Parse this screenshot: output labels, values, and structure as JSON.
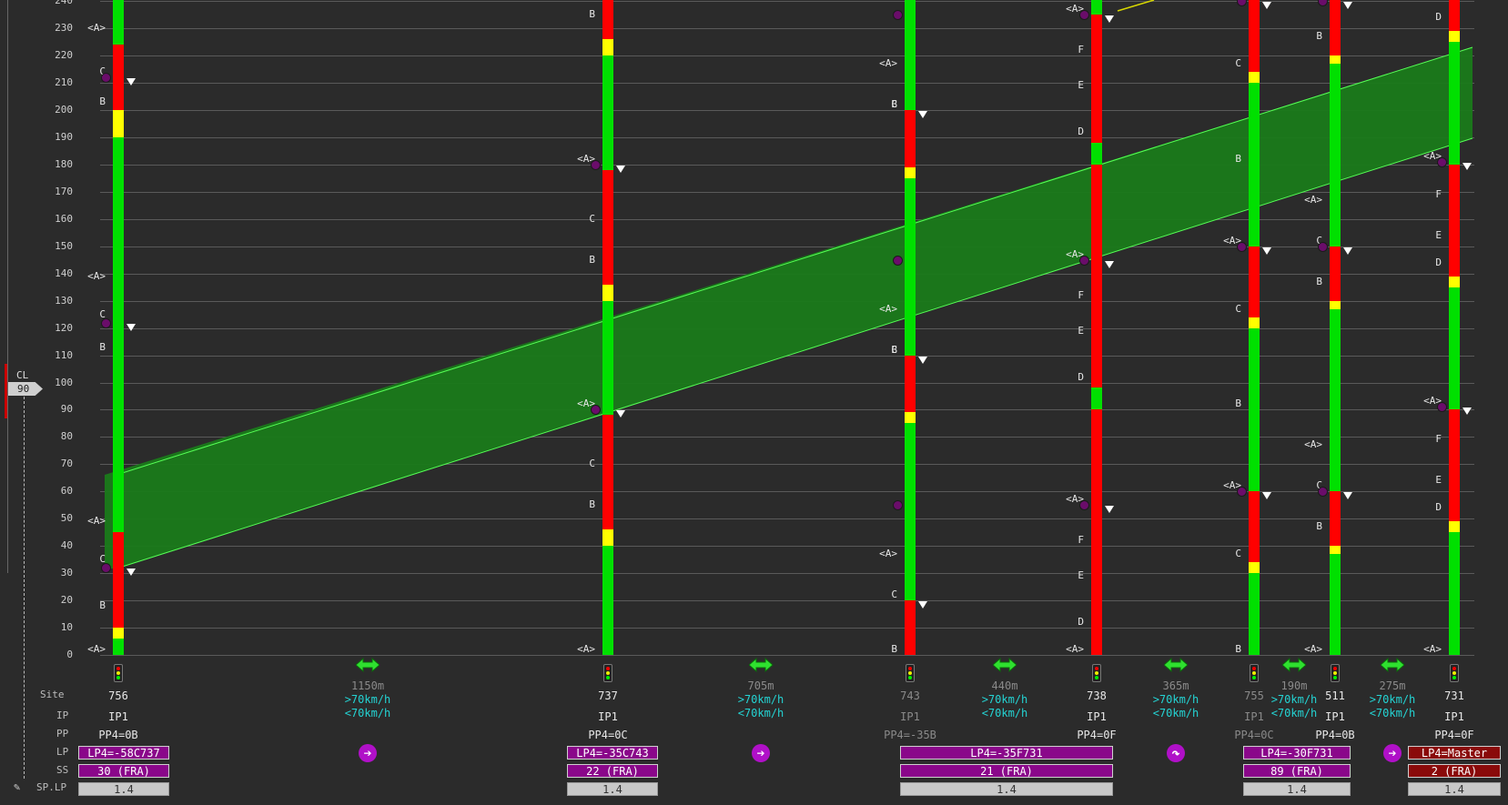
{
  "axis": {
    "ticks": [
      "0",
      "10",
      "20",
      "30",
      "40",
      "50",
      "60",
      "70",
      "80",
      "90",
      "100",
      "110",
      "120",
      "130",
      "140",
      "150",
      "160",
      "170",
      "180",
      "190",
      "200",
      "210",
      "220",
      "230",
      "240"
    ]
  },
  "cl": {
    "label": "CL",
    "value": "90"
  },
  "row_labels": {
    "site": "Site",
    "ip": "IP",
    "pp": "PP",
    "lp": "LP",
    "ss": "SS",
    "splp": "SP.LP"
  },
  "letters": {
    "A": "<A>",
    "B": "B",
    "C": "C",
    "D": "D",
    "E": "E",
    "F": "F"
  },
  "sites": [
    {
      "num": "756",
      "ip": "IP1",
      "pp": "PP4=0B",
      "lp": "LP4=-58C737",
      "ss": "30 (FRA)",
      "sp": "1.4",
      "dim": false
    },
    {
      "num": "737",
      "ip": "IP1",
      "pp": "PP4=0C",
      "lp": "LP4=-35C743",
      "ss": "22 (FRA)",
      "sp": "1.4",
      "dim": false
    },
    {
      "num": "743",
      "ip": "IP1",
      "pp": "PP4=-35B",
      "lp": "LP4=-35F731",
      "ss": "21 (FRA)",
      "sp": "1.4",
      "dim": true
    },
    {
      "num": "738",
      "ip": "IP1",
      "pp": "PP4=0F",
      "dim": false
    },
    {
      "num": "755",
      "ip": "IP1",
      "pp": "PP4=0C",
      "lp": "LP4=-30F731",
      "ss": "89 (FRA)",
      "sp": "1.4",
      "dim": true
    },
    {
      "num": "511",
      "ip": "IP1",
      "pp": "PP4=0B",
      "dim": false
    },
    {
      "num": "731",
      "ip": "IP1",
      "pp": "PP4=0F",
      "lp": "LP4=Master",
      "ss": "2 (FRA)",
      "sp": "1.4",
      "dim": false
    }
  ],
  "links": [
    {
      "dist": "1150m",
      "fast": ">70km/h",
      "slow": "<70km/h",
      "icon": "arrow-right"
    },
    {
      "dist": "705m",
      "fast": ">70km/h",
      "slow": "<70km/h",
      "icon": "arrow-right"
    },
    {
      "dist": "440m",
      "fast": ">70km/h",
      "slow": "<70km/h",
      "icon": ""
    },
    {
      "dist": "365m",
      "fast": ">70km/h",
      "slow": "<70km/h",
      "icon": "arrow-curve"
    },
    {
      "dist": "190m",
      "fast": ">70km/h",
      "slow": "<70km/h",
      "icon": ""
    },
    {
      "dist": "275m",
      "fast": ">70km/h",
      "slow": "<70km/h",
      "icon": "arrow-right"
    }
  ],
  "icons": {
    "arrow_right": "➔",
    "arrow_curve": "↷"
  },
  "colors": {
    "green": "#00e000",
    "red": "#ff0000",
    "yellow": "#ffff00",
    "band": "#1d8a1d",
    "lp_purple": "#8a078a",
    "master_red": "#8a0a0a"
  }
}
